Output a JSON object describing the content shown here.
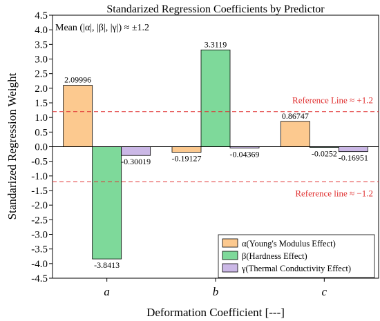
{
  "chart_data": {
    "type": "bar",
    "title": "Standarized Regression Coefficients by Predictor",
    "xlabel": "Deformation Coefficient [---]",
    "ylabel": "Standarized Regression Weight",
    "annotation": "Mean (|α|, |β|, |γ|) ≈ ±1.2",
    "categories": [
      "a",
      "b",
      "c"
    ],
    "ylim": [
      -4.5,
      4.5
    ],
    "yticks": [
      4.5,
      4.0,
      3.5,
      3.0,
      2.5,
      2.0,
      1.5,
      1.0,
      0.5,
      0.0,
      -0.5,
      -1.0,
      -1.5,
      -2.0,
      -2.5,
      -3.0,
      -3.5,
      -4.0,
      -4.5
    ],
    "ytick_labels": [
      "4.5",
      "4.0",
      "3.5",
      "3.0",
      "2.5",
      "2.0",
      "1.5",
      "1.0",
      "0.5",
      "0.0",
      "-0.5",
      "-1.0",
      "-1.5",
      "-2.0",
      "-2.5",
      "-3.0",
      "-3.5",
      "-4.0",
      "-4.5"
    ],
    "grid": false,
    "legend_position": "bottom-right",
    "series": [
      {
        "name": "α(Young's Modulus Effect)",
        "color": "#fcc98f",
        "values": [
          2.09996,
          -0.19127,
          0.86747
        ],
        "labels": [
          "2.09996",
          "-0.19127",
          "0.86747"
        ]
      },
      {
        "name": "β(Hardness Effect)",
        "color": "#7ed99a",
        "values": [
          -3.8413,
          3.3119,
          -0.0252
        ],
        "labels": [
          "-3.8413",
          "3.3119",
          "-0.0252"
        ]
      },
      {
        "name": "γ(Thermal Conductivity Effect)",
        "color": "#cbb8e6",
        "values": [
          -0.30019,
          -0.04369,
          -0.16951
        ],
        "labels": [
          "-0.30019",
          "-0.04369",
          "-0.16951"
        ]
      }
    ],
    "reference_lines": [
      {
        "value": 1.2,
        "label": "Reference Line ≈ +1.2",
        "color": "#e03030"
      },
      {
        "value": -1.2,
        "label": "Reference line ≈ −1.2",
        "color": "#e03030"
      }
    ]
  }
}
